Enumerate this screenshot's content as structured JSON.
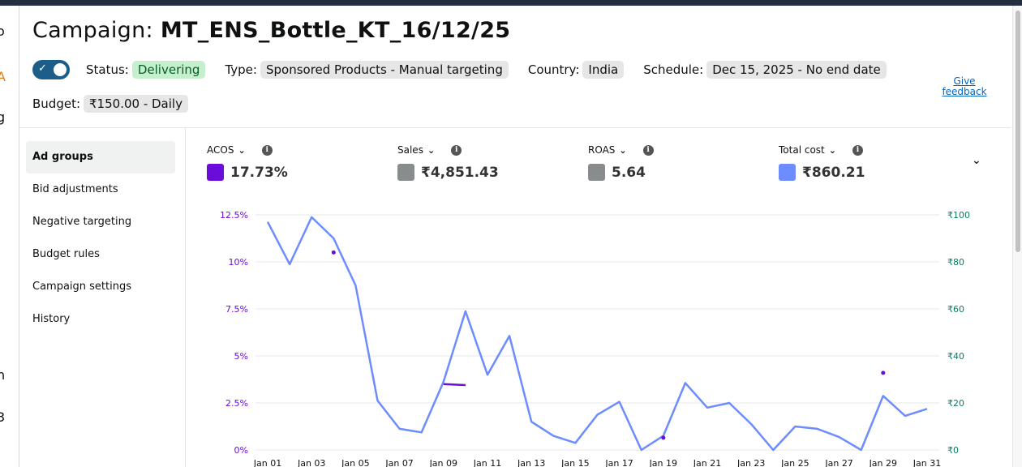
{
  "campaign": {
    "title_label": "Campaign: ",
    "title_name": "MT_ENS_Bottle_KT_16/12/25",
    "status_label": "Status:",
    "status_value": "Delivering",
    "type_label": "Type:",
    "type_value": "Sponsored Products - Manual targeting",
    "country_label": "Country:",
    "country_value": "India",
    "schedule_label": "Schedule:",
    "schedule_value": "Dec 15, 2025 - No end date",
    "budget_label": "Budget:",
    "budget_value": "₹150.00 - Daily",
    "give_feedback": "Give feedback",
    "toggle_on": true
  },
  "side_nav": {
    "items": [
      {
        "label": "Ad groups",
        "active": true
      },
      {
        "label": "Bid adjustments",
        "active": false
      },
      {
        "label": "Negative targeting",
        "active": false
      },
      {
        "label": "Budget rules",
        "active": false
      },
      {
        "label": "Campaign settings",
        "active": false
      },
      {
        "label": "History",
        "active": false
      }
    ]
  },
  "metrics": [
    {
      "label": "ACOS",
      "value": "17.73%",
      "color": "#6a0dda"
    },
    {
      "label": "Sales",
      "value": "₹4,851.43",
      "color": "#888c8c"
    },
    {
      "label": "ROAS",
      "value": "5.64",
      "color": "#888c8c"
    },
    {
      "label": "Total cost",
      "value": "₹860.21",
      "color": "#6c8cff"
    }
  ],
  "colors": {
    "acos": "#6a0dda",
    "cost": "#6c8cff",
    "right_axis": "#067d62",
    "grid": "#e7e7e7"
  },
  "chart_data": {
    "type": "line",
    "x": [
      "Jan 01",
      "Jan 02",
      "Jan 03",
      "Jan 04",
      "Jan 05",
      "Jan 06",
      "Jan 07",
      "Jan 08",
      "Jan 09",
      "Jan 10",
      "Jan 11",
      "Jan 12",
      "Jan 13",
      "Jan 14",
      "Jan 15",
      "Jan 16",
      "Jan 17",
      "Jan 18",
      "Jan 19",
      "Jan 20",
      "Jan 21",
      "Jan 22",
      "Jan 23",
      "Jan 24",
      "Jan 25",
      "Jan 26",
      "Jan 27",
      "Jan 28",
      "Jan 29",
      "Jan 30",
      "Jan 31"
    ],
    "x_tick_labels": [
      "Jan 01",
      "Jan 03",
      "Jan 05",
      "Jan 07",
      "Jan 09",
      "Jan 11",
      "Jan 13",
      "Jan 15",
      "Jan 17",
      "Jan 19",
      "Jan 21",
      "Jan 23",
      "Jan 25",
      "Jan 27",
      "Jan 29",
      "Jan 31"
    ],
    "left_axis": {
      "name": "ACOS",
      "ylim": [
        0,
        12.5
      ],
      "ticks": [
        "0%",
        "2.5%",
        "5%",
        "7.5%",
        "10%",
        "12.5%"
      ],
      "tick_values": [
        0,
        2.5,
        5,
        7.5,
        10,
        12.5
      ]
    },
    "right_axis": {
      "name": "Total cost",
      "ylim": [
        0,
        100
      ],
      "ticks": [
        "₹0",
        "₹20",
        "₹40",
        "₹60",
        "₹80",
        "₹100"
      ],
      "tick_values": [
        0,
        20,
        40,
        60,
        80,
        100
      ]
    },
    "series": [
      {
        "name": "Total cost",
        "axis": "right",
        "values": [
          97,
          79,
          99,
          90,
          70,
          21,
          9,
          7.5,
          29,
          59,
          32,
          48.5,
          12,
          6,
          3,
          15,
          20.5,
          0,
          6,
          28.5,
          18,
          20,
          11,
          0,
          10,
          9,
          5.5,
          0,
          23,
          14.5,
          17.5
        ]
      },
      {
        "name": "ACOS",
        "axis": "left",
        "values": [
          null,
          null,
          null,
          10.5,
          null,
          null,
          null,
          null,
          3.5,
          3.45,
          null,
          null,
          null,
          null,
          null,
          null,
          null,
          null,
          0.65,
          null,
          null,
          null,
          null,
          null,
          null,
          null,
          null,
          null,
          4.1,
          null,
          null
        ]
      }
    ],
    "grid": true
  }
}
